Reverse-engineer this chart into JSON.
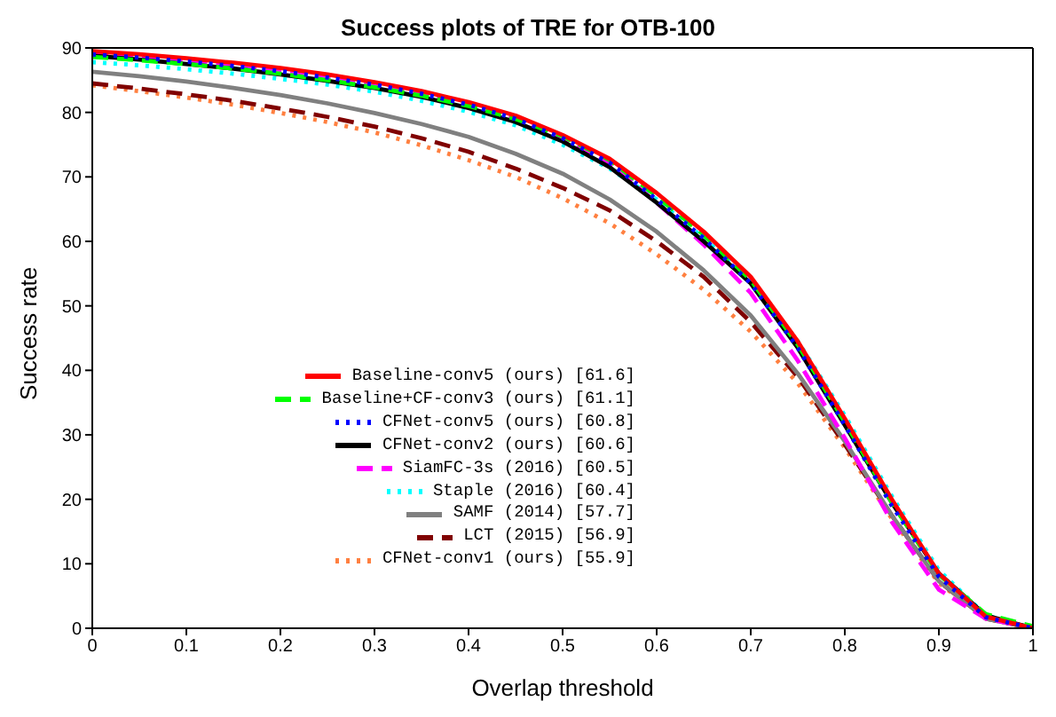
{
  "chart_data": {
    "type": "line",
    "title": "Success plots of TRE for OTB-100",
    "xlabel": "Overlap threshold",
    "ylabel": "Success rate",
    "x": [
      0,
      0.05,
      0.1,
      0.15,
      0.2,
      0.25,
      0.3,
      0.35,
      0.4,
      0.45,
      0.5,
      0.55,
      0.6,
      0.65,
      0.7,
      0.75,
      0.8,
      0.85,
      0.9,
      0.95,
      1
    ],
    "series": [
      {
        "name": "Baseline-conv5 (ours) [61.6]",
        "color": "#ff0000",
        "line_style": "solid",
        "values": [
          89.5,
          89,
          88.4,
          87.7,
          86.9,
          85.9,
          84.7,
          83.3,
          81.6,
          79.5,
          76.5,
          72.8,
          67.5,
          61.5,
          54.5,
          44.5,
          32.5,
          20,
          8.5,
          1.8,
          0
        ]
      },
      {
        "name": "Baseline+CF-conv3 (ours) [61.1]",
        "color": "#00ff00",
        "line_style": "dashed",
        "values": [
          88.6,
          88.1,
          87.5,
          86.8,
          86,
          85,
          83.9,
          82.6,
          81,
          79,
          76.3,
          72.6,
          67,
          61,
          54,
          44,
          32,
          19.5,
          8.3,
          2.2,
          0.3
        ]
      },
      {
        "name": "CFNet-conv5 (ours) [60.8]",
        "color": "#0000ff",
        "line_style": "dotted",
        "values": [
          89,
          88.5,
          87.9,
          87.2,
          86.4,
          85.4,
          84.3,
          82.9,
          81.2,
          79,
          76,
          72.2,
          66.5,
          60.5,
          53.5,
          43.5,
          31.5,
          19,
          8,
          1.7,
          0
        ]
      },
      {
        "name": "CFNet-conv2 (ours) [60.6]",
        "color": "#000000",
        "line_style": "solid",
        "values": [
          88.8,
          88.2,
          87.5,
          86.8,
          85.9,
          84.9,
          83.8,
          82.4,
          80.7,
          78.5,
          75.5,
          71.5,
          66,
          60,
          53.5,
          43.5,
          31.5,
          19.5,
          8.5,
          2,
          0
        ]
      },
      {
        "name": "SiamFC-3s (2016) [60.5]",
        "color": "#ff00ff",
        "line_style": "dashed",
        "values": [
          89.2,
          88.7,
          88.1,
          87.4,
          86.6,
          85.6,
          84.5,
          83.1,
          81.4,
          79.2,
          76,
          72,
          66,
          59.5,
          52,
          41.5,
          29.5,
          16.5,
          6,
          1.5,
          0
        ]
      },
      {
        "name": "Staple (2016) [60.4]",
        "color": "#00ffff",
        "line_style": "dotted",
        "values": [
          87.8,
          87.3,
          86.7,
          86,
          85.2,
          84.3,
          83.2,
          81.8,
          80.1,
          78,
          75,
          71.3,
          66.5,
          60.5,
          54,
          44.5,
          33,
          20.5,
          9,
          2,
          0
        ]
      },
      {
        "name": "SAMF (2014) [57.7]",
        "color": "#808080",
        "line_style": "solid",
        "values": [
          86.3,
          85.6,
          84.8,
          83.8,
          82.7,
          81.4,
          79.9,
          78.2,
          76.2,
          73.6,
          70.5,
          66.5,
          61.5,
          55.5,
          48.5,
          39.5,
          29,
          17.5,
          7.3,
          1.5,
          0
        ]
      },
      {
        "name": "LCT (2015) [56.9]",
        "color": "#800000",
        "line_style": "dashed",
        "values": [
          84.5,
          83.7,
          82.8,
          81.8,
          80.6,
          79.3,
          77.8,
          76,
          73.9,
          71.3,
          68.3,
          64.8,
          60,
          54.5,
          47.5,
          39,
          28.5,
          17.5,
          7.3,
          1.5,
          0
        ]
      },
      {
        "name": "CFNet-conv1 (ours) [55.9]",
        "color": "#ff8040",
        "line_style": "dotted",
        "values": [
          84.2,
          83.3,
          82.3,
          81.2,
          79.9,
          78.5,
          76.9,
          74.9,
          72.6,
          70,
          66.7,
          62.8,
          58,
          52.5,
          46,
          38,
          28,
          17,
          7,
          1.5,
          0
        ]
      }
    ],
    "xlim": [
      0,
      1
    ],
    "xticks": [
      0,
      0.1,
      0.2,
      0.3,
      0.4,
      0.5,
      0.6,
      0.7,
      0.8,
      0.9,
      1
    ],
    "ylim": [
      0,
      90
    ],
    "yticks": [
      0,
      10,
      20,
      30,
      40,
      50,
      60,
      70,
      80,
      90
    ],
    "grid": false,
    "legend": "bottom left",
    "marker": "none"
  }
}
